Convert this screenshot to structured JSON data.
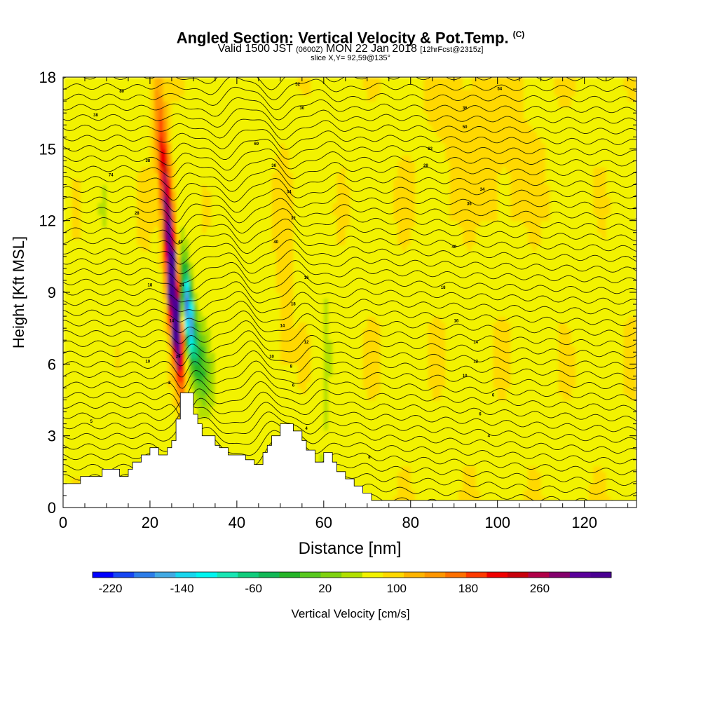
{
  "header": {
    "title": "Angled Section: Vertical Velocity & Pot.Temp.",
    "title_tag": "(C)",
    "valid_pre": "Valid 1500 JST",
    "valid_utc": "(0600Z)",
    "valid_date": "MON 22 Jan 2018",
    "forecast": "[12hrFcst@2315z]",
    "slice": "slice X,Y= 92,59@135°"
  },
  "chart_data": {
    "type": "heatmap",
    "title": "Angled Section: Vertical Velocity & Pot.Temp.",
    "xlabel": "Distance [nm]",
    "ylabel": "Height [Kft MSL]",
    "xlim": [
      0,
      132
    ],
    "ylim": [
      0,
      18
    ],
    "x_ticks": [
      0,
      20,
      40,
      60,
      80,
      100,
      120
    ],
    "y_ticks": [
      0,
      3,
      6,
      9,
      12,
      15,
      18
    ],
    "colorbar": {
      "label": "Vertical Velocity [cm/s]",
      "min": -240,
      "max": 340,
      "step": 20,
      "tick_values": [
        -220,
        -140,
        -60,
        20,
        100,
        180,
        260
      ],
      "tick_labels": [
        "-220",
        "-140",
        "-60",
        "20",
        "100",
        "180",
        "260"
      ],
      "colors": [
        "#0000ff",
        "#1746f2",
        "#2d7de8",
        "#42a9e3",
        "#18d6ee",
        "#00f5f0",
        "#18e6b4",
        "#10cc7c",
        "#12b856",
        "#25b428",
        "#58c81e",
        "#7fd210",
        "#b2e000",
        "#f2f200",
        "#ffd800",
        "#ffb400",
        "#ff9600",
        "#ff7000",
        "#ff3a00",
        "#f00000",
        "#c8000c",
        "#b00048",
        "#84006c",
        "#5a009a",
        "#4a0092"
      ]
    },
    "terrain": [
      [
        0,
        1.0
      ],
      [
        4,
        1.0
      ],
      [
        4,
        1.3
      ],
      [
        9,
        1.3
      ],
      [
        9,
        1.6
      ],
      [
        13,
        1.6
      ],
      [
        13,
        1.3
      ],
      [
        15,
        1.3
      ],
      [
        15,
        1.6
      ],
      [
        16,
        1.6
      ],
      [
        16,
        1.9
      ],
      [
        18,
        1.9
      ],
      [
        18,
        2.2
      ],
      [
        20,
        2.2
      ],
      [
        20,
        2.5
      ],
      [
        22,
        2.5
      ],
      [
        22,
        2.2
      ],
      [
        24,
        2.2
      ],
      [
        24,
        2.5
      ],
      [
        25,
        2.5
      ],
      [
        25,
        2.8
      ],
      [
        26,
        2.8
      ],
      [
        26,
        3.7
      ],
      [
        27,
        3.7
      ],
      [
        27,
        4.8
      ],
      [
        30,
        4.8
      ],
      [
        30,
        3.9
      ],
      [
        31,
        3.9
      ],
      [
        31,
        3.5
      ],
      [
        32,
        3.5
      ],
      [
        32,
        3.0
      ],
      [
        35,
        3.0
      ],
      [
        35,
        2.6
      ],
      [
        36,
        2.6
      ],
      [
        36,
        2.5
      ],
      [
        38,
        2.5
      ],
      [
        38,
        2.2
      ],
      [
        42,
        2.2
      ],
      [
        42,
        2.0
      ],
      [
        44,
        2.0
      ],
      [
        44,
        1.8
      ],
      [
        46,
        1.8
      ],
      [
        46,
        2.3
      ],
      [
        47,
        2.3
      ],
      [
        47,
        2.6
      ],
      [
        48,
        2.6
      ],
      [
        48,
        3.0
      ],
      [
        50,
        3.0
      ],
      [
        50,
        3.5
      ],
      [
        53,
        3.5
      ],
      [
        53,
        3.2
      ],
      [
        55,
        3.2
      ],
      [
        55,
        2.8
      ],
      [
        56,
        2.8
      ],
      [
        56,
        2.4
      ],
      [
        58,
        2.4
      ],
      [
        58,
        1.9
      ],
      [
        60,
        1.9
      ],
      [
        60,
        2.3
      ],
      [
        62,
        2.3
      ],
      [
        62,
        1.9
      ],
      [
        63,
        1.9
      ],
      [
        63,
        1.5
      ],
      [
        65,
        1.5
      ],
      [
        65,
        1.2
      ],
      [
        67,
        1.2
      ],
      [
        67,
        0.9
      ],
      [
        69,
        0.9
      ],
      [
        69,
        0.6
      ],
      [
        71,
        0.6
      ],
      [
        71,
        0.3
      ],
      [
        132,
        0.3
      ],
      [
        132,
        0
      ],
      [
        0,
        0
      ]
    ],
    "contour_labels": [
      {
        "x": 13.5,
        "y": 17.4,
        "text": "80"
      },
      {
        "x": 7.5,
        "y": 16.4,
        "text": "38"
      },
      {
        "x": 19.5,
        "y": 14.5,
        "text": "38"
      },
      {
        "x": 11,
        "y": 13.9,
        "text": "74"
      },
      {
        "x": 17,
        "y": 12.3,
        "text": "28"
      },
      {
        "x": 27,
        "y": 11.1,
        "text": "43"
      },
      {
        "x": 20,
        "y": 9.3,
        "text": "18"
      },
      {
        "x": 27.3,
        "y": 9.3,
        "text": "24"
      },
      {
        "x": 25,
        "y": 7.8,
        "text": "14"
      },
      {
        "x": 26.5,
        "y": 6.3,
        "text": "29"
      },
      {
        "x": 19.5,
        "y": 6.1,
        "text": "10"
      },
      {
        "x": 24.5,
        "y": 5.2,
        "text": "8"
      },
      {
        "x": 6.5,
        "y": 3.6,
        "text": "5"
      },
      {
        "x": 54,
        "y": 17.7,
        "text": "52"
      },
      {
        "x": 55,
        "y": 16.7,
        "text": "30"
      },
      {
        "x": 44.5,
        "y": 15.2,
        "text": "69"
      },
      {
        "x": 48.5,
        "y": 14.3,
        "text": "36"
      },
      {
        "x": 52,
        "y": 13.2,
        "text": "34"
      },
      {
        "x": 53,
        "y": 12.1,
        "text": "32"
      },
      {
        "x": 49,
        "y": 11.1,
        "text": "40"
      },
      {
        "x": 56,
        "y": 9.6,
        "text": "16"
      },
      {
        "x": 53,
        "y": 8.5,
        "text": "18"
      },
      {
        "x": 50.5,
        "y": 7.6,
        "text": "14"
      },
      {
        "x": 56,
        "y": 6.9,
        "text": "12"
      },
      {
        "x": 48,
        "y": 6.3,
        "text": "10"
      },
      {
        "x": 52.5,
        "y": 5.9,
        "text": "8"
      },
      {
        "x": 53,
        "y": 5.1,
        "text": "6"
      },
      {
        "x": 56,
        "y": 3.3,
        "text": "4"
      },
      {
        "x": 70.5,
        "y": 2.1,
        "text": "8"
      },
      {
        "x": 100.5,
        "y": 17.5,
        "text": "54"
      },
      {
        "x": 92.5,
        "y": 16.7,
        "text": "36"
      },
      {
        "x": 92.5,
        "y": 15.9,
        "text": "50"
      },
      {
        "x": 84.5,
        "y": 15.0,
        "text": "62"
      },
      {
        "x": 83.5,
        "y": 14.3,
        "text": "28"
      },
      {
        "x": 96.5,
        "y": 13.3,
        "text": "34"
      },
      {
        "x": 93.5,
        "y": 12.7,
        "text": "36"
      },
      {
        "x": 90,
        "y": 10.9,
        "text": "40"
      },
      {
        "x": 87.5,
        "y": 9.2,
        "text": "18"
      },
      {
        "x": 90.5,
        "y": 7.8,
        "text": "16"
      },
      {
        "x": 95,
        "y": 6.9,
        "text": "14"
      },
      {
        "x": 95,
        "y": 6.1,
        "text": "12"
      },
      {
        "x": 92.5,
        "y": 5.5,
        "text": "10"
      },
      {
        "x": 99,
        "y": 4.7,
        "text": "6"
      },
      {
        "x": 96,
        "y": 3.9,
        "text": "6"
      },
      {
        "x": 98,
        "y": 3.0,
        "text": "4"
      }
    ]
  }
}
